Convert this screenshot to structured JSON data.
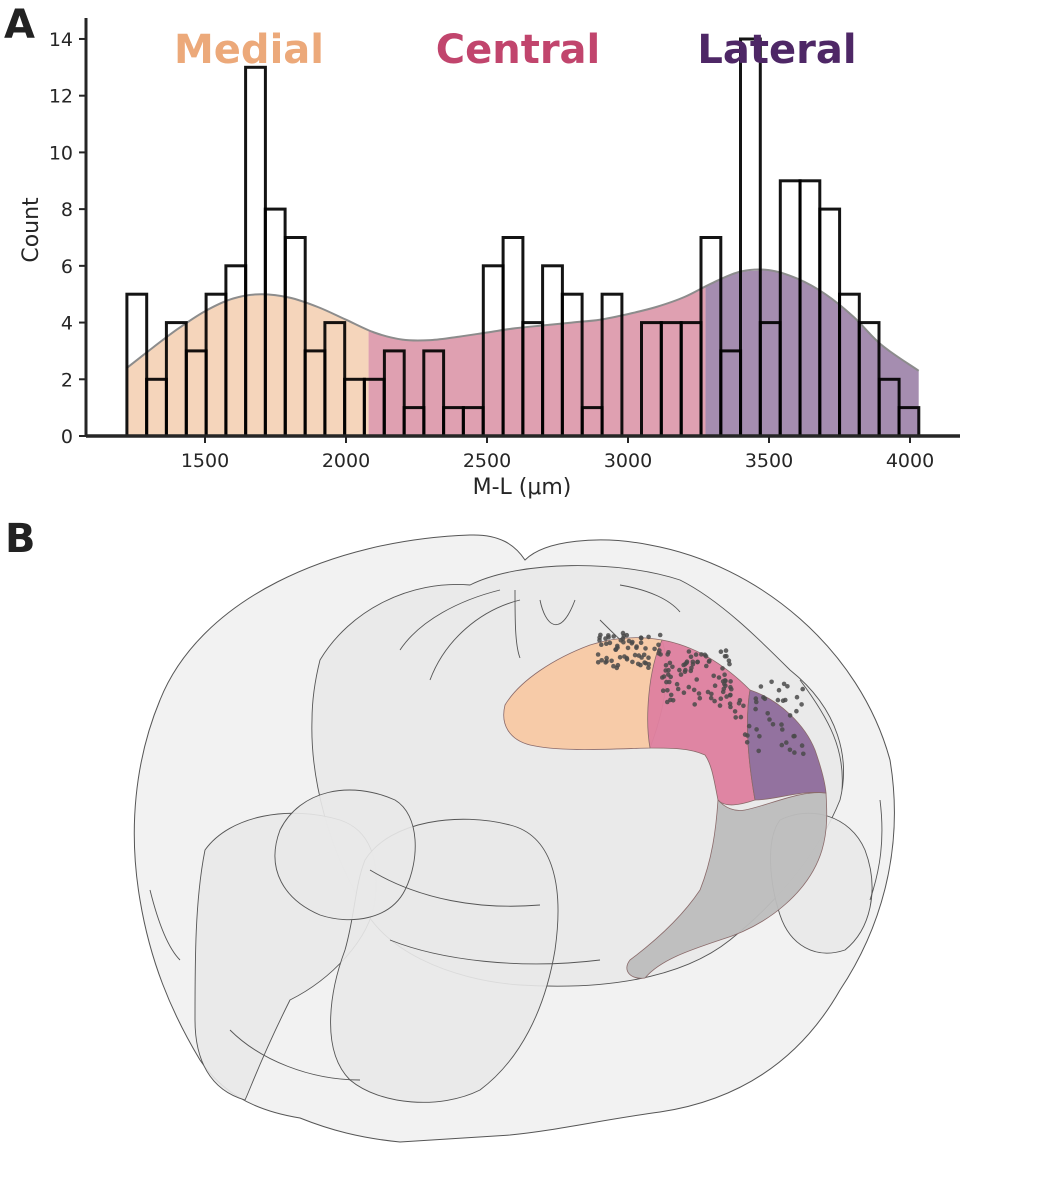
{
  "panels": {
    "a": "A",
    "b": "B"
  },
  "chart_data": {
    "type": "bar",
    "title": "",
    "xlabel": "M-L (μm)",
    "ylabel": "Count",
    "xlim": [
      1100,
      4180
    ],
    "ylim": [
      0,
      14.7
    ],
    "xticks": [
      1500,
      2000,
      2500,
      3000,
      3500,
      4000
    ],
    "yticks": [
      0,
      2,
      4,
      6,
      8,
      10,
      12,
      14
    ],
    "grid": false,
    "bin_width": 70.2,
    "series": [
      {
        "name": "",
        "bins": [
          {
            "x0": 1223,
            "count": 5
          },
          {
            "x0": 1293,
            "count": 2
          },
          {
            "x0": 1363,
            "count": 4
          },
          {
            "x0": 1434,
            "count": 3
          },
          {
            "x0": 1504,
            "count": 5
          },
          {
            "x0": 1574,
            "count": 6
          },
          {
            "x0": 1644,
            "count": 13
          },
          {
            "x0": 1714,
            "count": 8
          },
          {
            "x0": 1785,
            "count": 7
          },
          {
            "x0": 1855,
            "count": 3
          },
          {
            "x0": 1925,
            "count": 4
          },
          {
            "x0": 1995,
            "count": 2
          },
          {
            "x0": 2065,
            "count": 2
          },
          {
            "x0": 2136,
            "count": 3
          },
          {
            "x0": 2206,
            "count": 1
          },
          {
            "x0": 2276,
            "count": 3
          },
          {
            "x0": 2346,
            "count": 1
          },
          {
            "x0": 2416,
            "count": 1
          },
          {
            "x0": 2487,
            "count": 6
          },
          {
            "x0": 2557,
            "count": 7
          },
          {
            "x0": 2627,
            "count": 4
          },
          {
            "x0": 2697,
            "count": 6
          },
          {
            "x0": 2767,
            "count": 5
          },
          {
            "x0": 2838,
            "count": 1
          },
          {
            "x0": 2908,
            "count": 5
          },
          {
            "x0": 2978,
            "count": 0
          },
          {
            "x0": 3048,
            "count": 4
          },
          {
            "x0": 3118,
            "count": 4
          },
          {
            "x0": 3189,
            "count": 4
          },
          {
            "x0": 3259,
            "count": 7
          },
          {
            "x0": 3329,
            "count": 3
          },
          {
            "x0": 3399,
            "count": 14
          },
          {
            "x0": 3469,
            "count": 4
          },
          {
            "x0": 3540,
            "count": 9
          },
          {
            "x0": 3610,
            "count": 9
          },
          {
            "x0": 3680,
            "count": 8
          },
          {
            "x0": 3750,
            "count": 5
          },
          {
            "x0": 3820,
            "count": 4
          },
          {
            "x0": 3891,
            "count": 2
          },
          {
            "x0": 3961,
            "count": 1
          }
        ]
      }
    ],
    "kde": {
      "x": [
        1223,
        1300,
        1400,
        1500,
        1600,
        1700,
        1800,
        1900,
        2000,
        2100,
        2200,
        2300,
        2400,
        2500,
        2600,
        2700,
        2800,
        2900,
        3000,
        3100,
        3200,
        3300,
        3400,
        3500,
        3600,
        3700,
        3800,
        3900,
        4031
      ],
      "y": [
        2.4,
        3.0,
        3.75,
        4.4,
        4.85,
        5.0,
        4.88,
        4.55,
        4.1,
        3.65,
        3.4,
        3.38,
        3.5,
        3.65,
        3.8,
        3.9,
        4.0,
        4.1,
        4.3,
        4.55,
        4.9,
        5.4,
        5.8,
        5.85,
        5.55,
        5.0,
        4.2,
        3.2,
        2.3
      ]
    },
    "regions": [
      {
        "name": "Medial",
        "from": 1223,
        "to": 2080,
        "color": "#eca97a",
        "fill": "#f5d5bb"
      },
      {
        "name": "Central",
        "from": 2080,
        "to": 3275,
        "color": "#c1456d",
        "fill": "#dfa0b1"
      },
      {
        "name": "Lateral",
        "from": 3275,
        "to": 4031,
        "color": "#4e2766",
        "fill": "#a58db0"
      }
    ]
  },
  "brain": {
    "colors": {
      "outline": "#555555",
      "shell": "#f2f2f2",
      "inner": "#e9e9e9",
      "medial": "#f8c9a4",
      "central": "#de7f9f",
      "lateral": "#8e6c9b",
      "ventral": "#bdbdbd",
      "cell": "#4a4a4a"
    }
  }
}
